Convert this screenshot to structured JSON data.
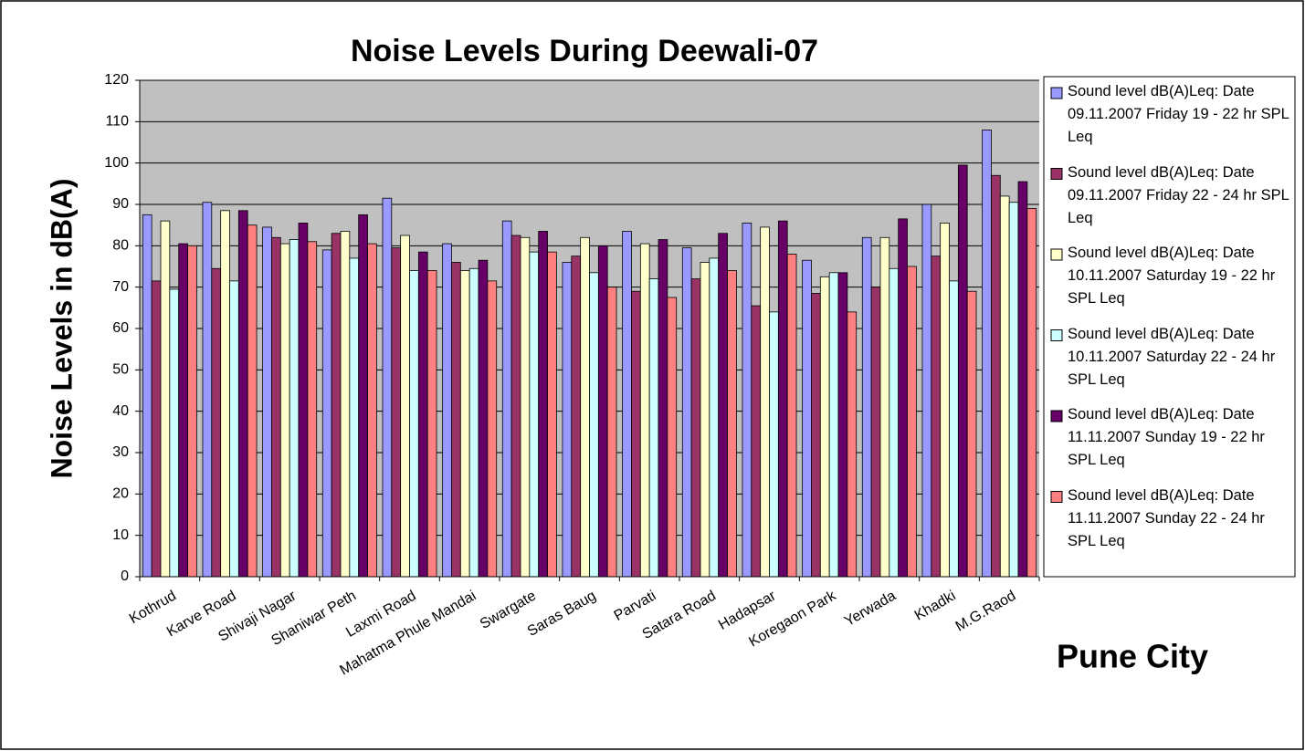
{
  "chart_data": {
    "type": "bar",
    "title": "Noise Levels During Deewali-07",
    "y_label": "Noise Levels in dB(A)",
    "x_label": "Pune City",
    "categories": [
      "Kothrud",
      "Karve Road",
      "Shivaji Nagar",
      "Shaniwar Peth",
      "Laxmi Road",
      "Mahatma Phule Mandai",
      "Swargate",
      "Saras Baug",
      "Parvati",
      "Satara Road",
      "Hadapsar",
      "Koregaon Park",
      "Yerwada",
      "Khadki",
      "M.G.Raod"
    ],
    "series": [
      {
        "name": "Sound level dB(A)Leq: Date 09.11.2007 Friday 19 - 22 hr SPL Leq",
        "color": "#9999ff",
        "values": [
          87.5,
          90.5,
          84.5,
          79,
          91.5,
          80.5,
          86,
          76,
          83.5,
          79.5,
          85.5,
          76.5,
          82,
          90,
          108
        ]
      },
      {
        "name": "Sound level dB(A)Leq: Date 09.11.2007 Friday 22 - 24 hr SPL Leq",
        "color": "#993366",
        "values": [
          71.5,
          74.5,
          82,
          83,
          79.5,
          76,
          82.5,
          77.5,
          69,
          72,
          65.5,
          68.5,
          70,
          77.5,
          97
        ]
      },
      {
        "name": "Sound level dB(A)Leq: Date 10.11.2007 Saturday 19 - 22 hr SPL Leq",
        "color": "#ffffcc",
        "values": [
          86,
          88.5,
          80.5,
          83.5,
          82.5,
          74,
          82,
          82,
          80.5,
          76,
          84.5,
          72.5,
          82,
          85.5,
          92
        ]
      },
      {
        "name": "Sound level dB(A)Leq: Date 10.11.2007 Saturday 22 - 24 hr SPL Leq",
        "color": "#ccffff",
        "values": [
          69.5,
          71.5,
          81.5,
          77,
          74,
          74.5,
          78.5,
          73.5,
          72,
          77,
          64,
          73.5,
          74.5,
          71.5,
          90.5
        ]
      },
      {
        "name": "Sound level dB(A)Leq: Date 11.11.2007 Sunday 19 - 22 hr SPL Leq",
        "color": "#660066",
        "values": [
          80.5,
          88.5,
          85.5,
          87.5,
          78.5,
          76.5,
          83.5,
          80,
          81.5,
          83,
          86,
          73.5,
          86.5,
          99.5,
          95.5
        ]
      },
      {
        "name": "Sound level dB(A)Leq: Date 11.11.2007 Sunday 22 - 24 hr SPL Leq",
        "color": "#ff8080",
        "values": [
          80,
          85,
          81,
          80.5,
          74,
          71.5,
          78.5,
          70,
          67.5,
          74,
          78,
          64,
          75,
          69,
          89
        ]
      }
    ],
    "ylim": [
      0,
      120
    ],
    "yticks": [
      0,
      10,
      20,
      30,
      40,
      50,
      60,
      70,
      80,
      90,
      100,
      110,
      120
    ],
    "grid": true,
    "plot_background": "#c0c0c0",
    "legend": "right"
  }
}
